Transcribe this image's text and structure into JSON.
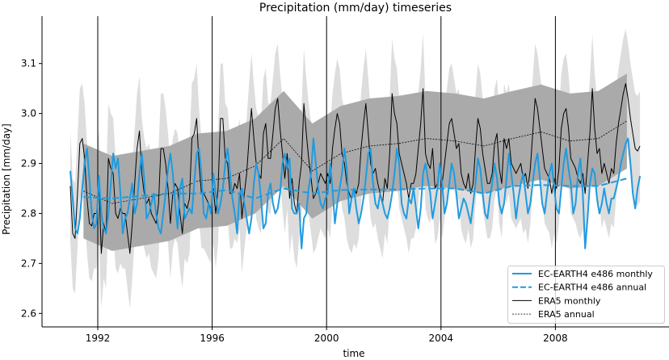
{
  "chart_data": {
    "type": "line",
    "title": "Precipitation (mm/day) timeseries",
    "xlabel": "time",
    "ylabel": "Precipitation [mm/day]",
    "xlim": [
      1990,
      2012
    ],
    "ylim": [
      2.57,
      3.19
    ],
    "x_ticks": [
      1992,
      1996,
      2000,
      2004,
      2008
    ],
    "y_ticks": [
      2.6,
      2.7,
      2.8,
      2.9,
      3.0,
      3.1
    ],
    "vertical_lines": [
      1992,
      1996,
      2000,
      2004,
      2008
    ],
    "legend_position": "lower-right",
    "monthly_start": 1991,
    "annual_years": [
      1991,
      1992,
      1993,
      1994,
      1995,
      1996,
      1997,
      1998,
      1999,
      2000,
      2001,
      2002,
      2003,
      2004,
      2005,
      2006,
      2007,
      2008,
      2009,
      2010
    ],
    "bands": {
      "era5_monthly_spread": 0.11,
      "era5_annual_spread": 0.095,
      "light_color": "#dddddd",
      "dark_color": "#aaaaaa"
    },
    "series": [
      {
        "name": "EC-EARTH4 e486 monthly",
        "color": "#1f9be0",
        "style": "solid",
        "kind": "monthly",
        "values": [
          2.885,
          2.83,
          2.77,
          2.76,
          2.79,
          2.85,
          2.9,
          2.93,
          2.87,
          2.8,
          2.77,
          2.78,
          2.875,
          2.8,
          2.77,
          2.76,
          2.8,
          2.86,
          2.92,
          2.89,
          2.91,
          2.84,
          2.76,
          2.79,
          2.8,
          2.83,
          2.86,
          2.8,
          2.82,
          2.88,
          2.92,
          2.87,
          2.79,
          2.8,
          2.82,
          2.84,
          2.8,
          2.77,
          2.76,
          2.8,
          2.84,
          2.89,
          2.92,
          2.88,
          2.82,
          2.77,
          2.85,
          2.87,
          2.79,
          2.8,
          2.81,
          2.8,
          2.86,
          2.92,
          2.93,
          2.88,
          2.8,
          2.79,
          2.82,
          2.8,
          2.88,
          2.84,
          2.8,
          2.82,
          2.85,
          2.9,
          2.93,
          2.88,
          2.83,
          2.8,
          2.76,
          2.84,
          2.85,
          2.82,
          2.79,
          2.76,
          2.79,
          2.86,
          2.9,
          2.88,
          2.83,
          2.77,
          2.78,
          2.84,
          2.86,
          2.82,
          2.8,
          2.81,
          2.84,
          2.9,
          2.92,
          2.89,
          2.91,
          2.81,
          2.8,
          2.8,
          2.82,
          2.73,
          2.79,
          2.8,
          2.85,
          2.88,
          2.95,
          2.9,
          2.85,
          2.82,
          2.81,
          2.83,
          2.84,
          2.9,
          2.85,
          2.78,
          2.82,
          2.85,
          2.88,
          2.93,
          2.89,
          2.8,
          2.83,
          2.85,
          2.81,
          2.78,
          2.8,
          2.83,
          2.87,
          2.92,
          2.93,
          2.86,
          2.82,
          2.81,
          2.84,
          2.82,
          2.8,
          2.79,
          2.81,
          2.84,
          2.88,
          2.93,
          2.9,
          2.82,
          2.8,
          2.79,
          2.83,
          2.82,
          2.85,
          2.81,
          2.77,
          2.81,
          2.88,
          2.9,
          2.87,
          2.84,
          2.79,
          2.82,
          2.85,
          2.9,
          2.86,
          2.8,
          2.82,
          2.86,
          2.9,
          2.88,
          2.84,
          2.79,
          2.81,
          2.83,
          2.82,
          2.8,
          2.78,
          2.82,
          2.86,
          2.91,
          2.89,
          2.84,
          2.8,
          2.79,
          2.83,
          2.86,
          2.9,
          2.87,
          2.82,
          2.8,
          2.82,
          2.87,
          2.92,
          2.88,
          2.84,
          2.79,
          2.83,
          2.86,
          2.88,
          2.84,
          2.8,
          2.82,
          2.86,
          2.9,
          2.92,
          2.87,
          2.82,
          2.8,
          2.84,
          2.88,
          2.9,
          2.85,
          2.81,
          2.8,
          2.85,
          2.9,
          2.93,
          2.89,
          2.86,
          2.8,
          2.82,
          2.88,
          2.91,
          2.84,
          2.73,
          2.79,
          2.86,
          2.89,
          2.88,
          2.83,
          2.8,
          2.82,
          2.85,
          2.82,
          2.8,
          2.83,
          2.83,
          2.85,
          2.87,
          2.9,
          2.92,
          2.94,
          2.95,
          2.9,
          2.84,
          2.81,
          2.85,
          2.875
        ]
      },
      {
        "name": "EC-EARTH4 e486 annual",
        "color": "#1f9be0",
        "style": "dashed",
        "kind": "annual",
        "values": [
          2.833,
          2.83,
          2.835,
          2.84,
          2.84,
          2.847,
          2.83,
          2.85,
          2.84,
          2.847,
          2.848,
          2.848,
          2.85,
          2.85,
          2.84,
          2.855,
          2.857,
          2.855,
          2.855,
          2.87
        ]
      },
      {
        "name": "ERA5 monthly",
        "color": "#000000",
        "style": "solid",
        "kind": "monthly",
        "values": [
          2.855,
          2.76,
          2.75,
          2.84,
          2.94,
          2.95,
          2.91,
          2.83,
          2.78,
          2.775,
          2.8,
          2.8,
          2.86,
          2.72,
          2.78,
          2.76,
          2.91,
          2.89,
          2.88,
          2.8,
          2.79,
          2.81,
          2.8,
          2.8,
          2.76,
          2.72,
          2.78,
          2.86,
          2.93,
          2.965,
          2.88,
          2.84,
          2.82,
          2.83,
          2.8,
          2.79,
          2.78,
          2.82,
          2.93,
          2.93,
          2.9,
          2.85,
          2.78,
          2.84,
          2.86,
          2.85,
          2.8,
          2.76,
          2.82,
          2.81,
          2.83,
          2.95,
          2.96,
          2.99,
          2.9,
          2.84,
          2.84,
          2.83,
          2.82,
          2.81,
          2.85,
          2.8,
          2.85,
          2.99,
          2.99,
          2.91,
          2.9,
          2.84,
          2.84,
          2.86,
          2.85,
          2.88,
          2.79,
          2.84,
          2.88,
          2.95,
          3.01,
          2.95,
          2.9,
          2.88,
          2.87,
          2.96,
          2.98,
          2.91,
          2.91,
          2.96,
          3.01,
          3.03,
          2.97,
          2.92,
          2.87,
          2.92,
          2.83,
          2.87,
          2.82,
          2.8,
          2.86,
          2.9,
          3.02,
          2.96,
          2.91,
          2.87,
          2.83,
          2.84,
          2.86,
          2.88,
          2.87,
          2.86,
          2.88,
          2.86,
          2.93,
          2.97,
          3.0,
          2.98,
          2.92,
          2.9,
          2.86,
          2.84,
          2.83,
          2.85,
          2.84,
          2.86,
          2.93,
          2.98,
          3.02,
          2.96,
          2.9,
          2.88,
          2.89,
          2.86,
          2.84,
          2.82,
          2.87,
          2.85,
          2.92,
          3.04,
          3.0,
          2.98,
          2.92,
          2.9,
          2.88,
          2.86,
          2.83,
          2.86,
          2.86,
          2.88,
          2.93,
          2.98,
          3.05,
          2.92,
          2.9,
          2.89,
          2.93,
          2.85,
          2.86,
          2.9,
          2.86,
          2.9,
          2.94,
          2.98,
          2.99,
          2.96,
          2.93,
          2.94,
          2.88,
          2.86,
          2.85,
          2.88,
          2.84,
          2.86,
          2.93,
          2.99,
          2.97,
          2.92,
          2.89,
          2.86,
          2.86,
          2.88,
          2.94,
          2.96,
          2.89,
          2.86,
          2.95,
          2.93,
          2.95,
          2.9,
          2.89,
          2.88,
          2.89,
          2.9,
          2.87,
          2.88,
          2.85,
          2.89,
          2.96,
          3.03,
          3.01,
          2.97,
          2.93,
          2.89,
          2.88,
          2.87,
          2.84,
          2.87,
          2.85,
          2.89,
          2.97,
          3.0,
          3.01,
          2.97,
          2.91,
          2.9,
          2.89,
          2.87,
          2.86,
          2.88,
          2.84,
          2.9,
          2.96,
          3.05,
          2.97,
          2.92,
          2.93,
          2.88,
          2.9,
          2.88,
          2.86,
          2.89,
          2.88,
          2.94,
          2.98,
          3.01,
          3.04,
          3.06,
          3.03,
          2.99,
          2.96,
          2.93,
          2.925,
          2.935
        ]
      },
      {
        "name": "ERA5 annual",
        "color": "#000000",
        "style": "dotted",
        "kind": "annual",
        "values": [
          2.845,
          2.82,
          2.83,
          2.84,
          2.865,
          2.87,
          2.895,
          2.95,
          2.885,
          2.92,
          2.935,
          2.94,
          2.95,
          2.945,
          2.935,
          2.95,
          2.963,
          2.945,
          2.95,
          2.985
        ]
      }
    ]
  }
}
